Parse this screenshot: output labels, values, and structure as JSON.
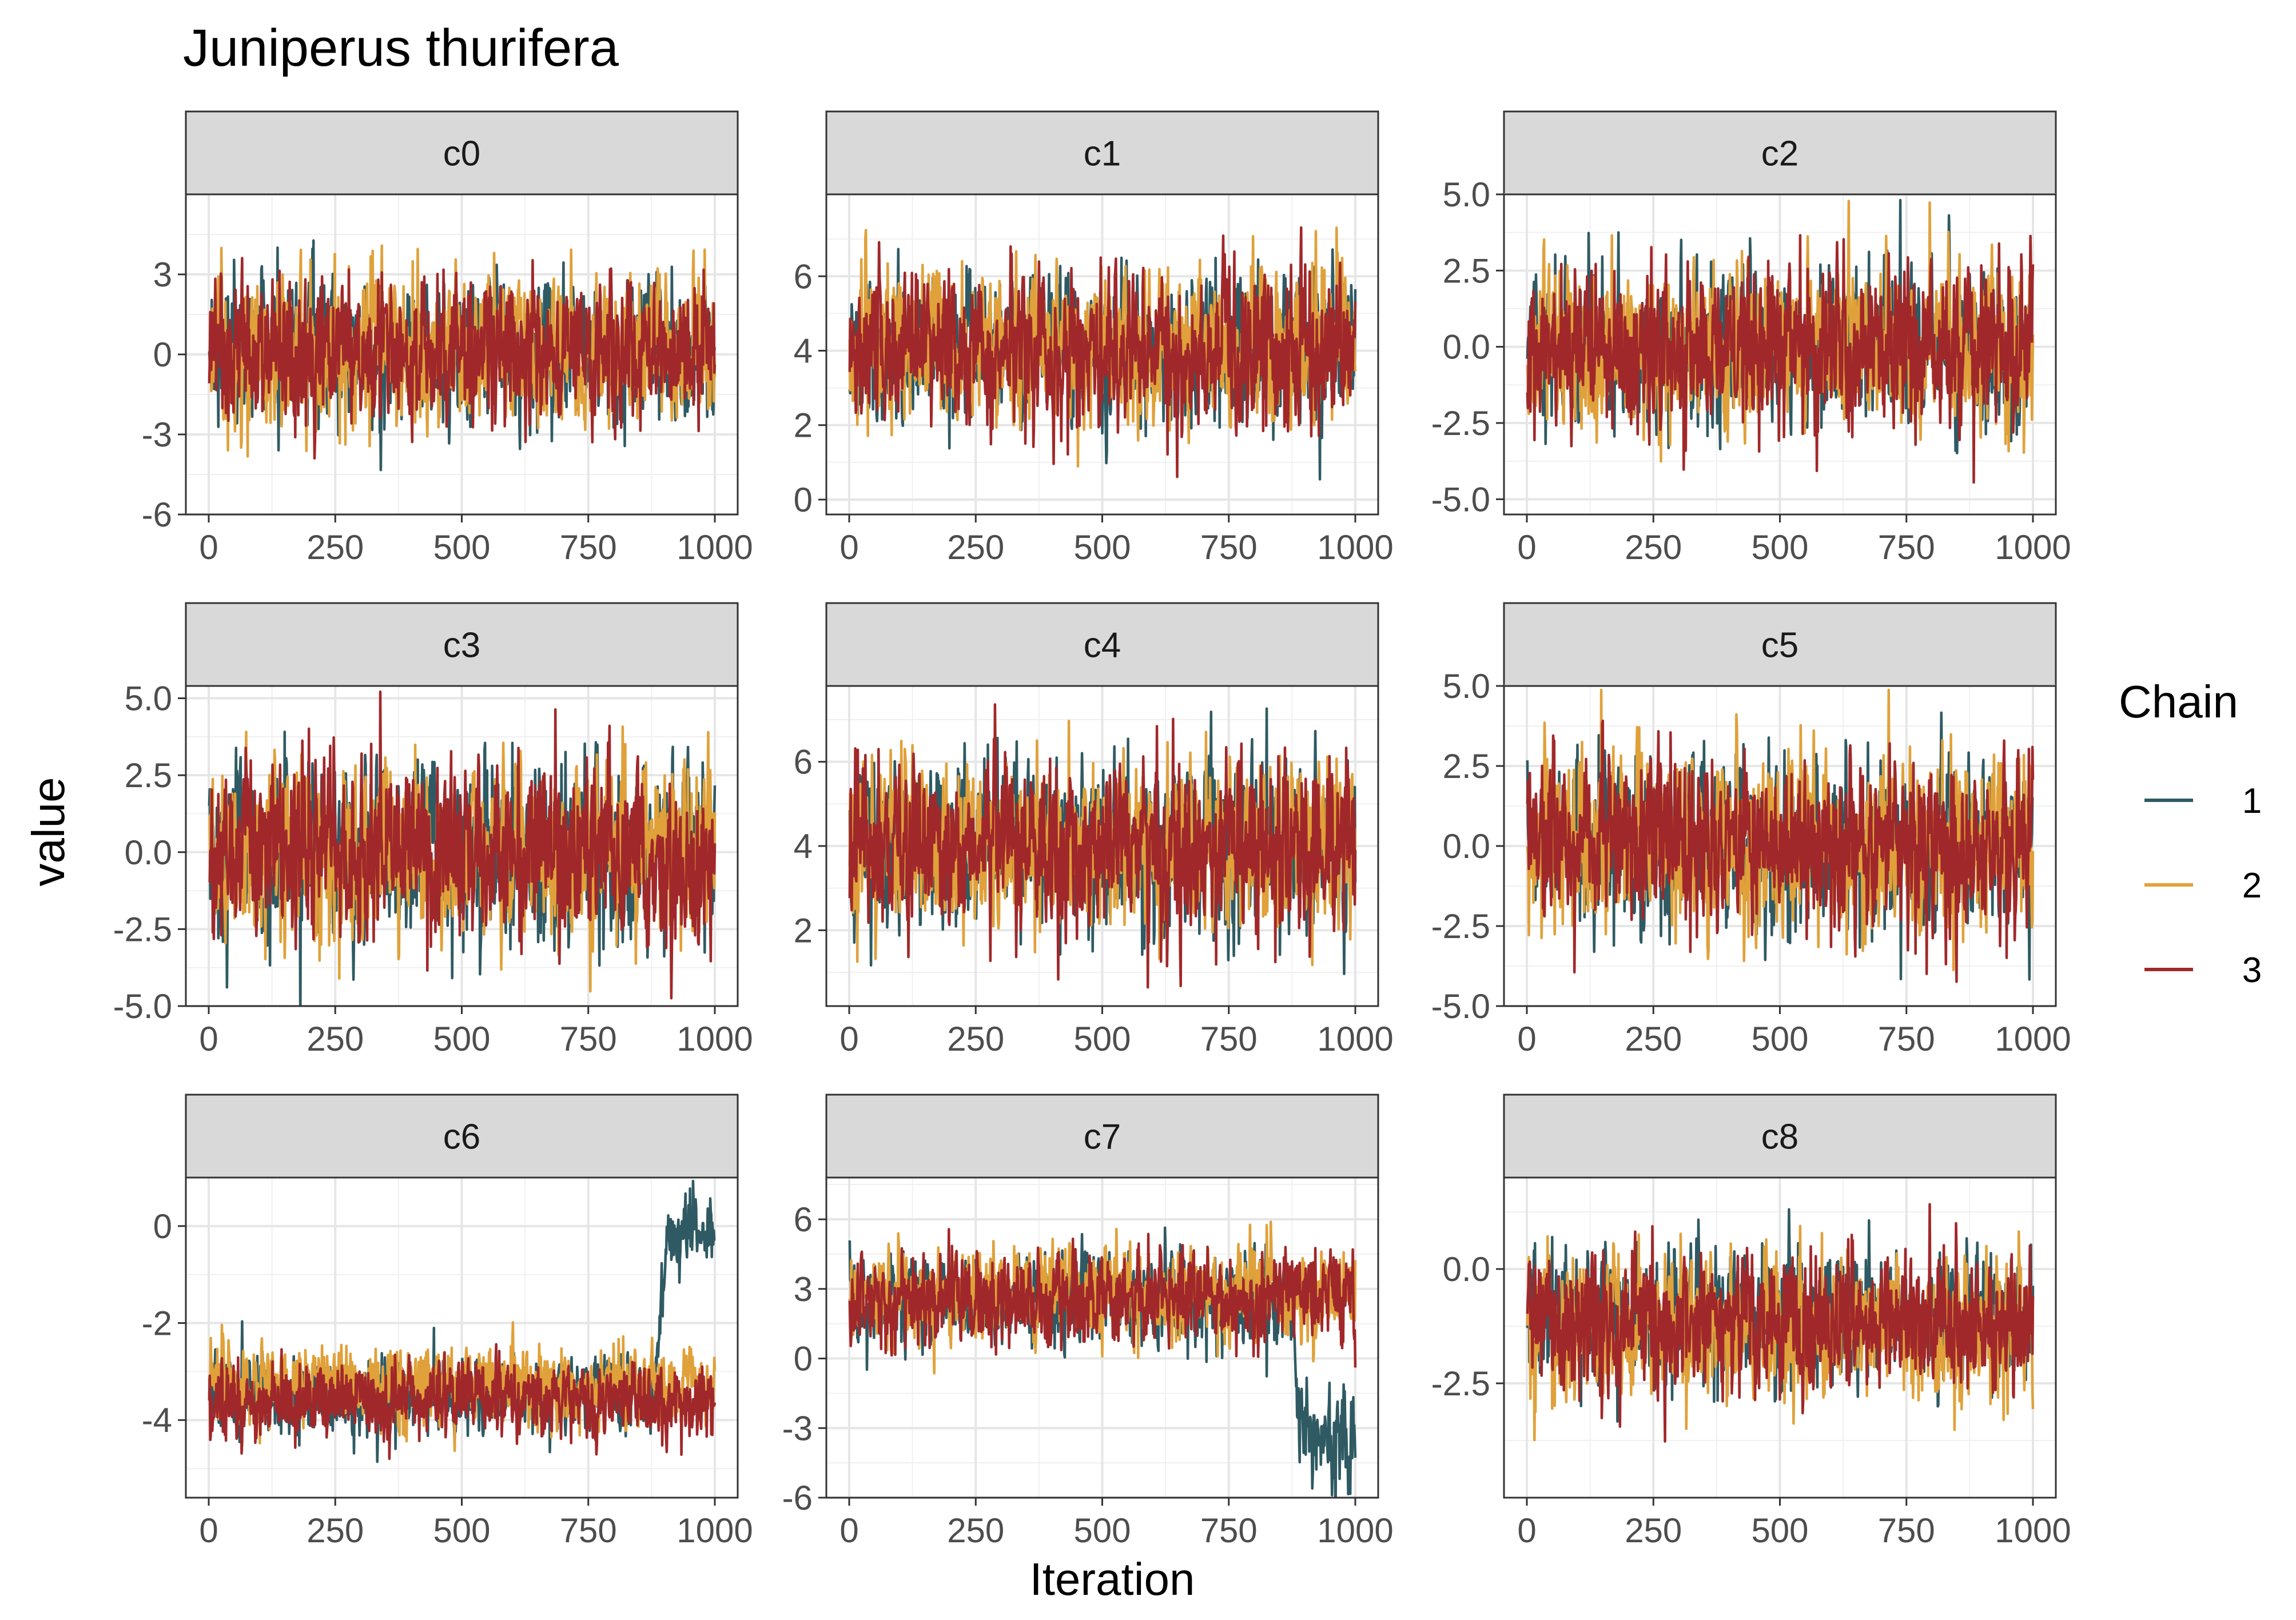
{
  "title": "Juniperus thurifera",
  "xlabel": "Iteration",
  "ylabel": "value",
  "legend": {
    "title": "Chain",
    "position": "right",
    "entries": [
      {
        "label": "1",
        "color": "#2F5A63"
      },
      {
        "label": "2",
        "color": "#E0A13A"
      },
      {
        "label": "3",
        "color": "#A1282A"
      }
    ]
  },
  "chart_data": {
    "type": "line",
    "facet_type": "trace plot",
    "x": {
      "min": 1,
      "max": 1000,
      "ticks": [
        0,
        250,
        500,
        750,
        1000
      ],
      "tick_labels": [
        "0",
        "250",
        "500",
        "750",
        "1000"
      ]
    },
    "series_names": [
      "1",
      "2",
      "3"
    ],
    "grid": true,
    "panels": [
      {
        "name": "c0",
        "ylim": [
          -6,
          6
        ],
        "yticks": [
          -6,
          -3,
          0,
          3
        ],
        "ytick_labels": [
          "-6",
          "-3",
          "0",
          "3"
        ],
        "chains": [
          {
            "name": "1",
            "mean": 0.1,
            "spread": 1.2
          },
          {
            "name": "2",
            "mean": 0.2,
            "spread": 1.3
          },
          {
            "name": "3",
            "mean": 0.1,
            "spread": 1.2
          }
        ]
      },
      {
        "name": "c1",
        "ylim": [
          -0.4,
          8.2
        ],
        "yticks": [
          0,
          2,
          4,
          6
        ],
        "ytick_labels": [
          "0",
          "2",
          "4",
          "6"
        ],
        "chains": [
          {
            "name": "1",
            "mean": 4.0,
            "spread": 0.9
          },
          {
            "name": "2",
            "mean": 4.1,
            "spread": 0.9
          },
          {
            "name": "3",
            "mean": 4.0,
            "spread": 0.9
          }
        ]
      },
      {
        "name": "c2",
        "ylim": [
          -5.5,
          5.0
        ],
        "yticks": [
          -5.0,
          -2.5,
          0.0,
          2.5,
          5.0
        ],
        "ytick_labels": [
          "-5.0",
          "-2.5",
          "0.0",
          "2.5",
          "5.0"
        ],
        "chains": [
          {
            "name": "1",
            "mean": 0.0,
            "spread": 1.2
          },
          {
            "name": "2",
            "mean": 0.0,
            "spread": 1.2
          },
          {
            "name": "3",
            "mean": 0.0,
            "spread": 1.2
          }
        ]
      },
      {
        "name": "c3",
        "ylim": [
          -5.0,
          5.4
        ],
        "yticks": [
          -5.0,
          -2.5,
          0.0,
          2.5,
          5.0
        ],
        "ytick_labels": [
          "-5.0",
          "-2.5",
          "0.0",
          "2.5",
          "5.0"
        ],
        "chains": [
          {
            "name": "1",
            "mean": 0.0,
            "spread": 1.3
          },
          {
            "name": "2",
            "mean": 0.1,
            "spread": 1.3
          },
          {
            "name": "3",
            "mean": 0.0,
            "spread": 1.3
          }
        ]
      },
      {
        "name": "c4",
        "ylim": [
          0.2,
          7.8
        ],
        "yticks": [
          2,
          4,
          6
        ],
        "ytick_labels": [
          "2",
          "4",
          "6"
        ],
        "chains": [
          {
            "name": "1",
            "mean": 4.0,
            "spread": 0.9
          },
          {
            "name": "2",
            "mean": 4.0,
            "spread": 0.9
          },
          {
            "name": "3",
            "mean": 4.0,
            "spread": 0.9
          }
        ]
      },
      {
        "name": "c5",
        "ylim": [
          -5.0,
          5.0
        ],
        "yticks": [
          -5.0,
          -2.5,
          0.0,
          2.5,
          5.0
        ],
        "ytick_labels": [
          "-5.0",
          "-2.5",
          "0.0",
          "2.5",
          "5.0"
        ],
        "chains": [
          {
            "name": "1",
            "mean": 0.0,
            "spread": 1.2
          },
          {
            "name": "2",
            "mean": 0.0,
            "spread": 1.2
          },
          {
            "name": "3",
            "mean": 0.0,
            "spread": 1.2
          }
        ]
      },
      {
        "name": "c6",
        "ylim": [
          -5.6,
          1.0
        ],
        "yticks": [
          -4,
          -2,
          0
        ],
        "ytick_labels": [
          "-4",
          "-2",
          "0"
        ],
        "chains": [
          {
            "name": "1",
            "mean": -3.5,
            "spread": 0.35,
            "shift_from": 880,
            "shift_to": -0.2
          },
          {
            "name": "2",
            "mean": -3.3,
            "spread": 0.35
          },
          {
            "name": "3",
            "mean": -3.6,
            "spread": 0.35
          }
        ]
      },
      {
        "name": "c7",
        "ylim": [
          -6.0,
          7.8
        ],
        "yticks": [
          -6,
          -3,
          0,
          3,
          6
        ],
        "ytick_labels": [
          "-6",
          "-3",
          "0",
          "3",
          "6"
        ],
        "chains": [
          {
            "name": "1",
            "mean": 2.5,
            "spread": 0.9,
            "shift_from": 870,
            "shift_to": -3.5
          },
          {
            "name": "2",
            "mean": 2.8,
            "spread": 0.9
          },
          {
            "name": "3",
            "mean": 2.6,
            "spread": 0.9
          }
        ]
      },
      {
        "name": "c8",
        "ylim": [
          -5.0,
          2.0
        ],
        "yticks": [
          -2.5,
          0.0
        ],
        "ytick_labels": [
          "-2.5",
          "0.0"
        ],
        "chains": [
          {
            "name": "1",
            "mean": -1.1,
            "spread": 0.7
          },
          {
            "name": "2",
            "mean": -1.3,
            "spread": 0.7
          },
          {
            "name": "3",
            "mean": -1.2,
            "spread": 0.7
          }
        ]
      }
    ]
  }
}
